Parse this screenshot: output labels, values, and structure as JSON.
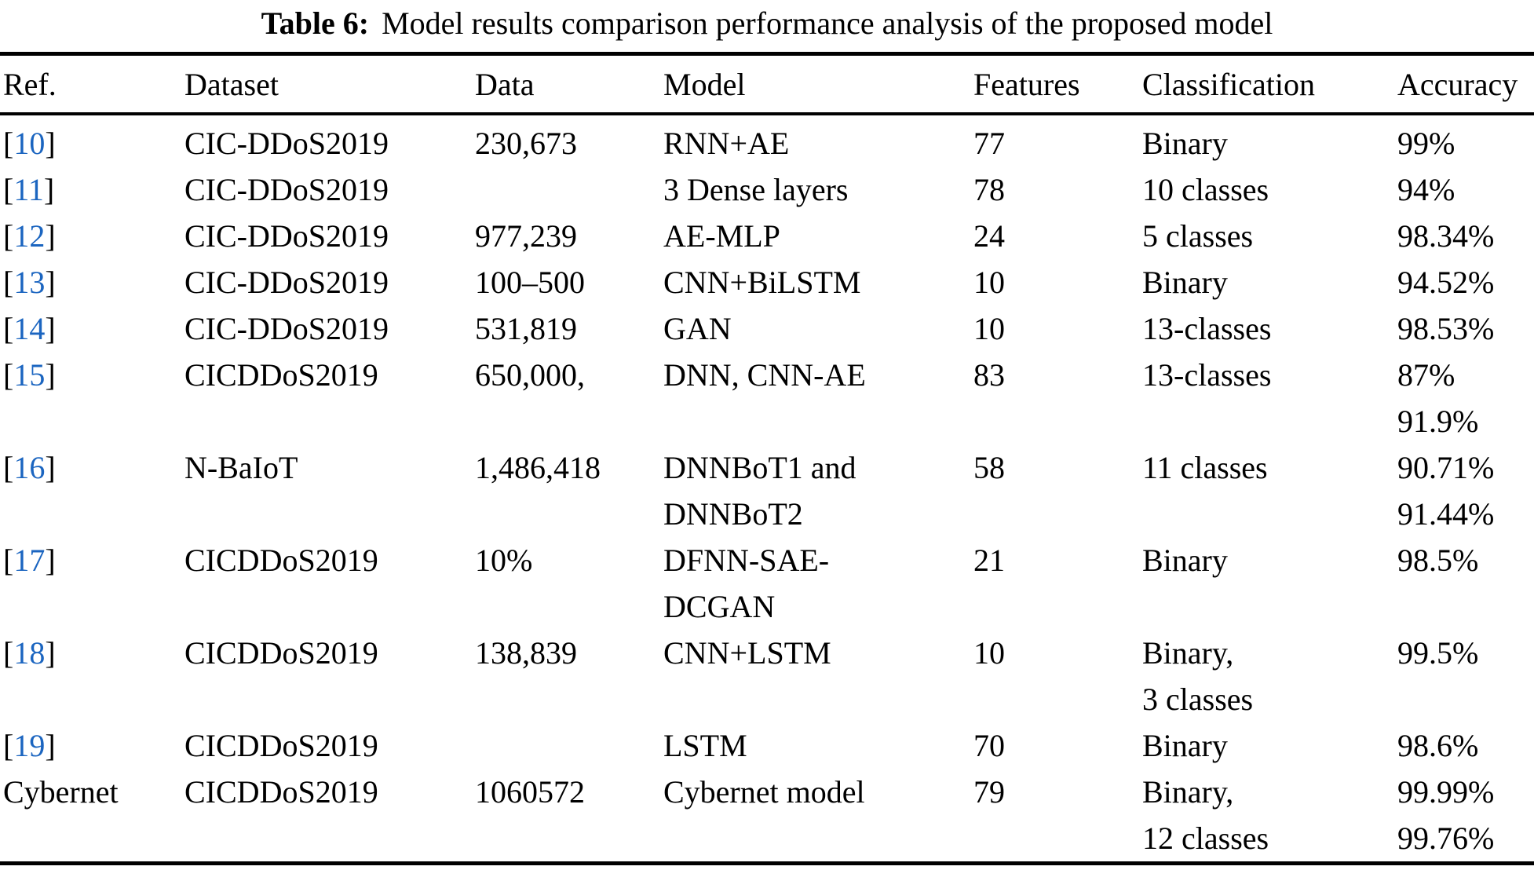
{
  "caption": {
    "label": "Table 6:",
    "text": "Model results comparison performance analysis of the proposed model"
  },
  "brackets": {
    "open": "[",
    "close": "]"
  },
  "colors": {
    "link_blue": "#1b65c0",
    "text": "#000000",
    "background": "#ffffff"
  },
  "table": {
    "columns": [
      "Ref.",
      "Dataset",
      "Data",
      "Model",
      "Features",
      "Classification",
      "Accuracy"
    ],
    "rows": [
      {
        "ref": "10",
        "is_link": true,
        "dataset": "CIC-DDoS2019",
        "data": "230,673",
        "model": "RNN+AE",
        "features": "77",
        "classification": "Binary",
        "accuracy": "99%"
      },
      {
        "ref": "11",
        "is_link": true,
        "dataset": "CIC-DDoS2019",
        "data": "",
        "model": "3 Dense layers",
        "features": "78",
        "classification": "10 classes",
        "accuracy": "94%"
      },
      {
        "ref": "12",
        "is_link": true,
        "dataset": "CIC-DDoS2019",
        "data": "977,239",
        "model": "AE-MLP",
        "features": "24",
        "classification": "5 classes",
        "accuracy": "98.34%"
      },
      {
        "ref": "13",
        "is_link": true,
        "dataset": "CIC-DDoS2019",
        "data": "100–500",
        "model": "CNN+BiLSTM",
        "features": "10",
        "classification": "Binary",
        "accuracy": "94.52%"
      },
      {
        "ref": "14",
        "is_link": true,
        "dataset": "CIC-DDoS2019",
        "data": "531,819",
        "model": "GAN",
        "features": "10",
        "classification": "13-classes",
        "accuracy": "98.53%"
      },
      {
        "ref": "15",
        "is_link": true,
        "dataset": "CICDDoS2019",
        "data": "650,000,",
        "model": "DNN, CNN-AE",
        "features": "83",
        "classification": "13-classes",
        "accuracy": "87%\n91.9%"
      },
      {
        "ref": "16",
        "is_link": true,
        "dataset": "N-BaIoT",
        "data": "1,486,418",
        "model": "DNNBoT1 and\nDNNBoT2",
        "features": "58",
        "classification": "11 classes",
        "accuracy": "90.71%\n91.44%"
      },
      {
        "ref": "17",
        "is_link": true,
        "dataset": "CICDDoS2019",
        "data": "10%",
        "model": "DFNN-SAE-\nDCGAN",
        "features": "21",
        "classification": "Binary",
        "accuracy": "98.5%"
      },
      {
        "ref": "18",
        "is_link": true,
        "dataset": "CICDDoS2019",
        "data": "138,839",
        "model": "CNN+LSTM",
        "features": "10",
        "classification": "Binary,\n3 classes",
        "accuracy": "99.5%"
      },
      {
        "ref": "19",
        "is_link": true,
        "dataset": "CICDDoS2019",
        "data": "",
        "model": "LSTM",
        "features": "70",
        "classification": "Binary",
        "accuracy": "98.6%"
      },
      {
        "ref": "Cybernet",
        "is_link": false,
        "dataset": "CICDDoS2019",
        "data": "1060572",
        "model": "Cybernet model",
        "features": "79",
        "classification": "Binary,\n12 classes",
        "accuracy": "99.99%\n99.76%"
      }
    ]
  }
}
